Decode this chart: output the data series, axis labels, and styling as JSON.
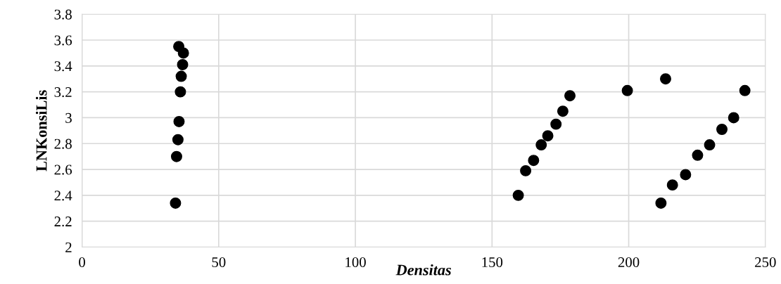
{
  "chart_data": {
    "type": "scatter",
    "xlabel": "Densitas",
    "ylabel": "LNKonsiLis",
    "series": [
      {
        "color": "#000000",
        "x": [
          35.4,
          37.1,
          36.8,
          36.3,
          36.0,
          35.5,
          35.1,
          34.6,
          34.2,
          159.6,
          162.3,
          165.2,
          168.0,
          170.4,
          173.4,
          175.9,
          178.5,
          199.5,
          213.5,
          211.8,
          216.0,
          220.8,
          225.2,
          229.6,
          234.1,
          238.4,
          242.5
        ],
        "values": [
          3.55,
          3.5,
          3.41,
          3.32,
          3.2,
          2.97,
          2.83,
          2.7,
          2.34,
          2.4,
          2.59,
          2.67,
          2.79,
          2.86,
          2.95,
          3.05,
          3.17,
          3.21,
          3.3,
          2.34,
          2.48,
          2.56,
          2.71,
          2.79,
          2.91,
          3.0,
          3.21
        ]
      }
    ],
    "xlim": [
      0,
      250
    ],
    "xticks": [
      0,
      50,
      100,
      150,
      200,
      250
    ],
    "ylim": [
      2,
      3.8
    ],
    "yticks": [
      2,
      2.2,
      2.4,
      2.6,
      2.8,
      3,
      3.2,
      3.4,
      3.6,
      3.8
    ],
    "grid": true,
    "marker": "circle",
    "legend": false
  }
}
